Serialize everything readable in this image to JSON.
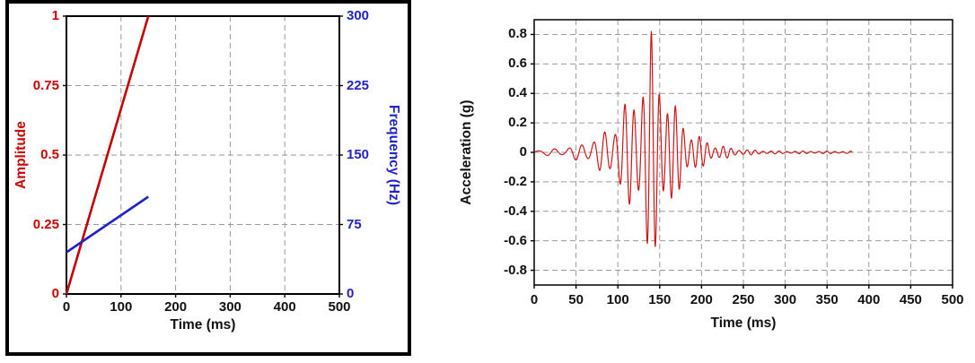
{
  "chart_data": [
    {
      "id": "amplitude-frequency-envelope",
      "type": "line",
      "title": "",
      "xlabel": "Time (ms)",
      "xlim": [
        0,
        500
      ],
      "xticks": [
        0,
        100,
        200,
        300,
        400,
        500
      ],
      "xtick_labels": [
        "0",
        "100",
        "200",
        "300",
        "400",
        "500"
      ],
      "grid": true,
      "grid_color": "#9a9a9a",
      "outer_frame_color": "#000000",
      "axes": {
        "left": {
          "label": "Amplitude",
          "color": "#cc0000",
          "lim": [
            0,
            1
          ],
          "ticks": [
            0,
            0.25,
            0.5,
            0.75,
            1
          ],
          "tick_labels": [
            "0",
            "0.25",
            "0.5",
            "0.75",
            "1"
          ]
        },
        "right": {
          "label": "Frequency  (Hz)",
          "color": "#2222cc",
          "lim": [
            0,
            300
          ],
          "ticks": [
            0,
            75,
            150,
            225,
            300
          ],
          "tick_labels": [
            "0",
            "75",
            "150",
            "225",
            "300"
          ]
        }
      },
      "series": [
        {
          "name": "amplitude-ramp",
          "axis": "left",
          "color": "#c40000",
          "width": 2.6,
          "points": [
            [
              0,
              0
            ],
            [
              150,
              1
            ]
          ]
        },
        {
          "name": "frequency-sweep",
          "axis": "right",
          "color": "#2222cc",
          "width": 2.6,
          "points": [
            [
              0,
              45
            ],
            [
              150,
              105
            ]
          ]
        }
      ]
    },
    {
      "id": "acceleration-wavelet",
      "type": "line",
      "title": "",
      "xlabel": "Time (ms)",
      "ylabel": "Acceleration (g)",
      "xlim": [
        0,
        500
      ],
      "ylim": [
        -0.9,
        0.9
      ],
      "xticks": [
        0,
        50,
        100,
        150,
        200,
        250,
        300,
        350,
        400,
        450,
        500
      ],
      "xtick_labels": [
        "0",
        "50",
        "100",
        "150",
        "200",
        "250",
        "300",
        "350",
        "400",
        "450",
        "500"
      ],
      "yticks": [
        0.8,
        0.6,
        0.4,
        0.2,
        0,
        -0.2,
        -0.4,
        -0.6,
        -0.8
      ],
      "ytick_labels": [
        "0.8",
        "0.6",
        "0.4",
        "0.2",
        "0",
        "-0.2",
        "-0.4",
        "-0.6",
        "-0.8"
      ],
      "grid": true,
      "grid_color": "#9a9a9a",
      "series": [
        {
          "name": "acceleration-wavelet-trace",
          "axis": "left",
          "color": "#cc1616",
          "width": 1.2,
          "key_points": {
            "peak": {
              "t_ms": 140,
              "g": 0.82
            },
            "trough": {
              "t_ms": 144,
              "g": -0.72
            },
            "signal_start_ms": 0,
            "signal_end_ms": 380
          },
          "generator": {
            "kind": "modulated-chirp",
            "t_start": 0,
            "t_end": 380,
            "dt": 0.4,
            "align_peak_t": 140,
            "modulation": {
              "period_ms": 30,
              "depth": 0.25
            },
            "envelope": [
              [
                0,
                0.018
              ],
              [
                35,
                0.03
              ],
              [
                55,
                0.06
              ],
              [
                75,
                0.11
              ],
              [
                90,
                0.18
              ],
              [
                105,
                0.3
              ],
              [
                118,
                0.42
              ],
              [
                128,
                0.56
              ],
              [
                136,
                0.72
              ],
              [
                140,
                0.82
              ],
              [
                146,
                0.7
              ],
              [
                152,
                0.56
              ],
              [
                162,
                0.4
              ],
              [
                172,
                0.28
              ],
              [
                185,
                0.17
              ],
              [
                200,
                0.1
              ],
              [
                215,
                0.06
              ],
              [
                235,
                0.032
              ],
              [
                255,
                0.018
              ],
              [
                290,
                0.01
              ],
              [
                380,
                0.008
              ]
            ],
            "frequency_hz": [
              [
                0,
                45
              ],
              [
                150,
                105
              ],
              [
                380,
                105
              ]
            ]
          }
        }
      ]
    }
  ]
}
